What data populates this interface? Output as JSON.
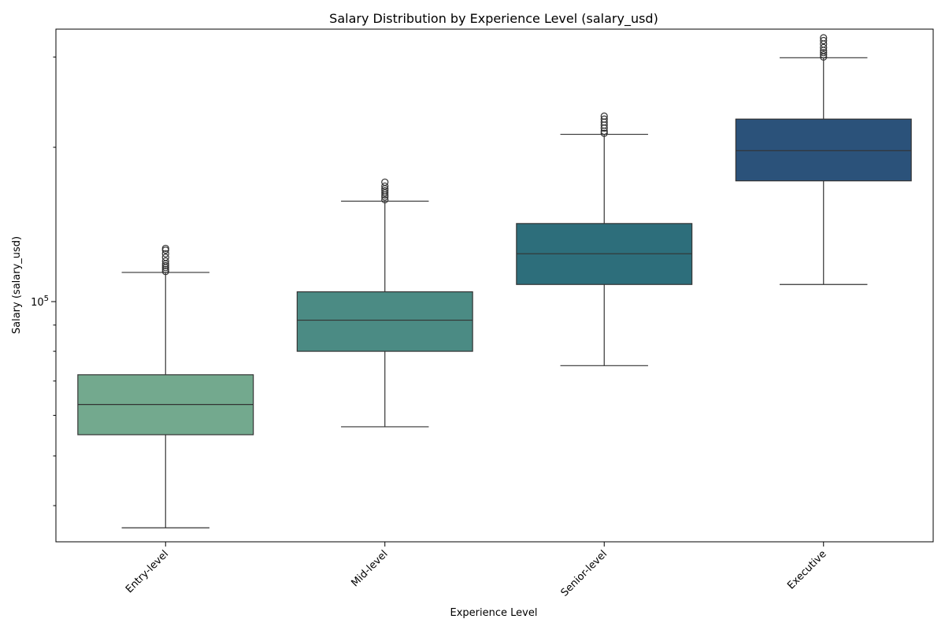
{
  "chart_data": {
    "type": "box",
    "title": "Salary Distribution by Experience Level (salary_usd)",
    "xlabel": "Experience Level",
    "ylabel": "Salary (salary_usd)",
    "yscale": "log",
    "ylim": [
      34000,
      340000
    ],
    "y_major_ticks": [
      {
        "value": 100000,
        "base": "10",
        "exp": "5"
      }
    ],
    "y_minor_ticks": [
      40000,
      50000,
      60000,
      70000,
      80000,
      90000,
      200000,
      300000
    ],
    "grid": false,
    "categories": [
      "Entry-level",
      "Mid-level",
      "Senior-level",
      "Executive"
    ],
    "colors": [
      "#73a98e",
      "#4b8b84",
      "#2d6e7b",
      "#2b527a"
    ],
    "boxes": [
      {
        "name": "Entry-level",
        "whislo": 36200,
        "q1": 55000,
        "median": 63000,
        "q3": 72000,
        "whishi": 114000,
        "fliers": [
          114500,
          115500,
          116500,
          117500,
          118500,
          120000,
          122000,
          124000,
          126000,
          127000
        ]
      },
      {
        "name": "Mid-level",
        "whislo": 57000,
        "q1": 80000,
        "median": 92000,
        "q3": 104500,
        "whishi": 157000,
        "fliers": [
          158000,
          160000,
          161500,
          163000,
          164500,
          166000,
          168000,
          171000
        ]
      },
      {
        "name": "Senior-level",
        "whislo": 75000,
        "q1": 108000,
        "median": 124000,
        "q3": 142000,
        "whishi": 212000,
        "fliers": [
          213000,
          215000,
          218000,
          221000,
          224000,
          227000,
          230000
        ]
      },
      {
        "name": "Executive",
        "whislo": 108000,
        "q1": 172000,
        "median": 197000,
        "q3": 227000,
        "whishi": 299000,
        "fliers": [
          300000,
          303000,
          306000,
          309000,
          313000,
          318000,
          323000,
          327000
        ]
      }
    ]
  }
}
